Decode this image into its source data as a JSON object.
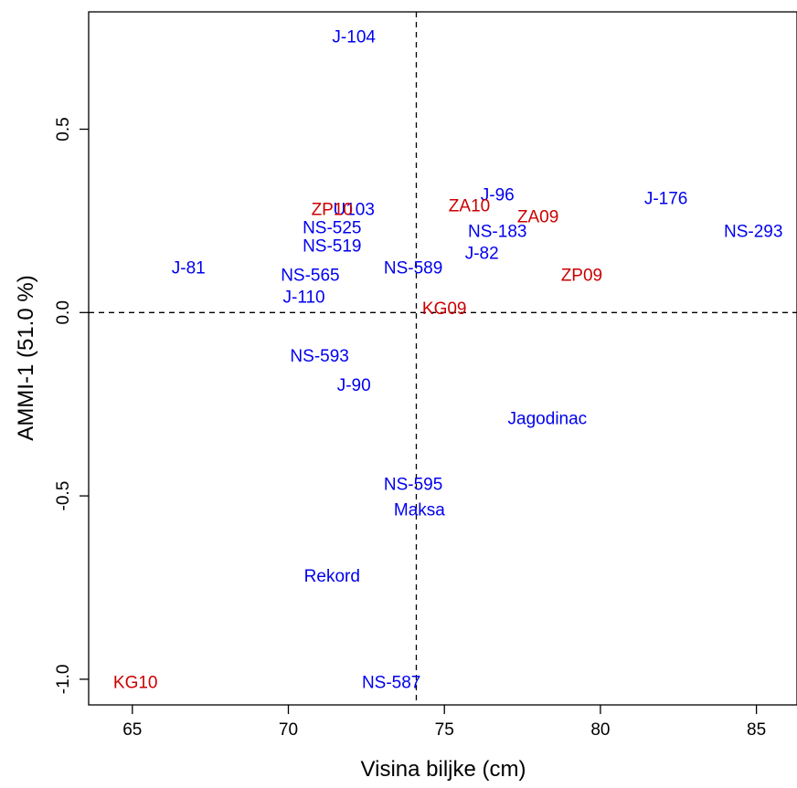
{
  "chart_data": {
    "type": "scatter",
    "xlabel": "Visina biljke (cm)",
    "ylabel": "AMMI-1 (51.0 %)",
    "xlim": [
      63.6,
      86.3
    ],
    "ylim": [
      -1.07,
      0.82
    ],
    "xticks": [
      65,
      70,
      75,
      80,
      85
    ],
    "xtick_labels": [
      "65",
      "70",
      "75",
      "80",
      "85"
    ],
    "yticks": [
      -1.0,
      -0.5,
      0.0,
      0.5
    ],
    "ytick_labels": [
      "-1.0",
      "-0.5",
      "0.0",
      "0.5"
    ],
    "ref_lines": {
      "x": 74.1,
      "y": 0.0
    },
    "grid": false,
    "colors": {
      "genotype": "#0000ee",
      "environment": "#cc0000"
    },
    "points": [
      {
        "label": "J-104",
        "x": 72.1,
        "y": 0.75,
        "group": "genotype"
      },
      {
        "label": "J-96",
        "x": 76.7,
        "y": 0.32,
        "group": "genotype"
      },
      {
        "label": "J-176",
        "x": 82.1,
        "y": 0.31,
        "group": "genotype"
      },
      {
        "label": "U103",
        "x": 72.1,
        "y": 0.28,
        "group": "genotype"
      },
      {
        "label": "NS-525",
        "x": 71.4,
        "y": 0.23,
        "group": "genotype"
      },
      {
        "label": "NS-183",
        "x": 76.7,
        "y": 0.22,
        "group": "genotype"
      },
      {
        "label": "NS-293",
        "x": 84.9,
        "y": 0.22,
        "group": "genotype"
      },
      {
        "label": "NS-519",
        "x": 71.4,
        "y": 0.18,
        "group": "genotype"
      },
      {
        "label": "J-82",
        "x": 76.2,
        "y": 0.16,
        "group": "genotype"
      },
      {
        "label": "J-81",
        "x": 66.8,
        "y": 0.12,
        "group": "genotype"
      },
      {
        "label": "NS-589",
        "x": 74.0,
        "y": 0.12,
        "group": "genotype"
      },
      {
        "label": "NS-565",
        "x": 70.7,
        "y": 0.1,
        "group": "genotype"
      },
      {
        "label": "J-110",
        "x": 70.5,
        "y": 0.04,
        "group": "genotype"
      },
      {
        "label": "NS-593",
        "x": 71.0,
        "y": -0.12,
        "group": "genotype"
      },
      {
        "label": "J-90",
        "x": 72.1,
        "y": -0.2,
        "group": "genotype"
      },
      {
        "label": "Jagodinac",
        "x": 78.3,
        "y": -0.29,
        "group": "genotype"
      },
      {
        "label": "NS-595",
        "x": 74.0,
        "y": -0.47,
        "group": "genotype"
      },
      {
        "label": "Maksa",
        "x": 74.2,
        "y": -0.54,
        "group": "genotype"
      },
      {
        "label": "Rekord",
        "x": 71.4,
        "y": -0.72,
        "group": "genotype"
      },
      {
        "label": "NS-587",
        "x": 73.3,
        "y": -1.01,
        "group": "genotype"
      },
      {
        "label": "ZP10",
        "x": 71.4,
        "y": 0.28,
        "group": "environment"
      },
      {
        "label": "ZA10",
        "x": 75.8,
        "y": 0.29,
        "group": "environment"
      },
      {
        "label": "ZA09",
        "x": 78.0,
        "y": 0.26,
        "group": "environment"
      },
      {
        "label": "ZP09",
        "x": 79.4,
        "y": 0.1,
        "group": "environment"
      },
      {
        "label": "KG09",
        "x": 75.0,
        "y": 0.01,
        "group": "environment"
      },
      {
        "label": "KG10",
        "x": 65.1,
        "y": -1.01,
        "group": "environment"
      }
    ]
  }
}
